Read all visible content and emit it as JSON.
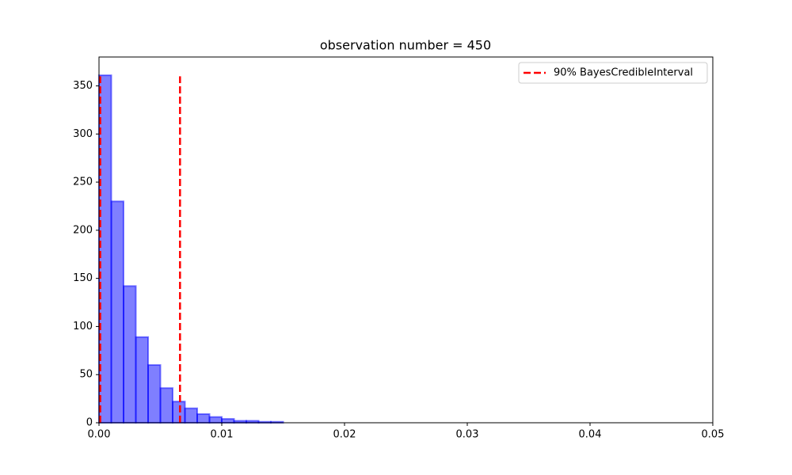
{
  "chart_data": {
    "type": "histogram",
    "title": "observation number = 450",
    "bins": [
      0,
      0.001,
      0.002,
      0.003,
      0.004,
      0.005,
      0.006,
      0.007,
      0.008,
      0.009,
      0.01,
      0.011,
      0.012,
      0.013,
      0.014,
      0.015
    ],
    "counts": [
      361,
      230,
      142,
      89,
      60,
      36,
      22,
      15,
      9,
      6,
      4,
      2,
      2,
      1,
      1
    ],
    "color": "#0000ff",
    "vlines": {
      "name": "90% BayesCredibleInterval",
      "color": "#ff0000",
      "x": [
        0.0001,
        0.0066
      ],
      "ymin": 0,
      "ymax": 360
    },
    "xlim": [
      0,
      0.05
    ],
    "xticks": [
      {
        "value": 0,
        "label": "0.00"
      },
      0.01,
      0.02,
      0.03,
      0.04,
      0.05
    ],
    "ylim": [
      0,
      380
    ],
    "yticks": [
      0,
      50,
      100,
      150,
      200,
      250,
      300,
      350
    ],
    "legend": "upper right"
  }
}
